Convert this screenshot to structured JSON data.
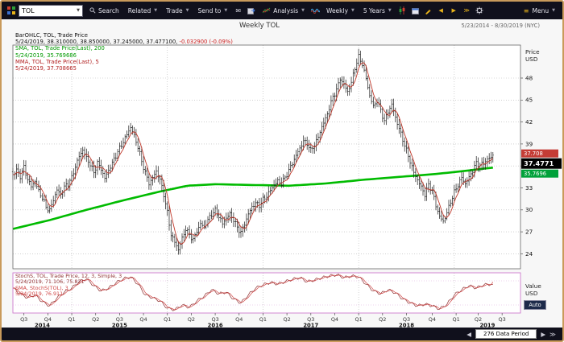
{
  "window": {
    "menu_label": "Menu"
  },
  "toolbar": {
    "ticker": "TOL",
    "search_label": "Search",
    "related_label": "Related",
    "trade_label": "Trade",
    "send_to_label": "Send to",
    "analysis_label": "Analysis",
    "interval_value": "Weekly",
    "range_value": "5 Years"
  },
  "header": {
    "title": "Weekly TOL",
    "date_range": "5/23/2014 - 8/30/2019 (NYC)"
  },
  "legend": {
    "line1": "BarOHLC, TOL, Trade Price",
    "line2_main": "5/24/2019, 38.310000, 38.850000, 37.245000, 37.477100,",
    "line2_change": "-0.032900 (-0.09%)",
    "line3": "SMA, TOL, Trade Price(Last),  200",
    "line4": "5/24/2019, 35.769686",
    "line5": "MMA, TOL, Trade Price(Last),  5",
    "line6": "5/24/2019, 37.708665"
  },
  "stoch_legend": {
    "line1": "StochS, TOL, Trade Price, 12, 3, Simple, 3",
    "line2": "5/24/2019, 71.106, 75.821",
    "line3": "SMA, StochS(TOL), 3",
    "line4": "5/24/2019, 76.911"
  },
  "price_axis": {
    "title_line1": "Price",
    "title_line2": "USD",
    "labels": [
      {
        "value": "37.708",
        "bg": "#c43c35"
      },
      {
        "value": "37.4771",
        "bg": "#000000"
      },
      {
        "value": "35.7696",
        "bg": "#00a13a"
      }
    ]
  },
  "stoch_axis": {
    "title_line1": "Value",
    "title_line2": "USD",
    "auto_label": "Auto"
  },
  "footer": {
    "data_period_label": "276 Data Period"
  },
  "colors": {
    "sma_green": "#00bb00",
    "mma_red": "#c0392b",
    "bar": "#1c1c1c",
    "change_red": "#cc2222",
    "stoch_main": "#8e3030",
    "stoch_sma": "#cf4444",
    "panel_magenta": "#cc7acc",
    "window_border": "#c99a5b"
  },
  "chart_data": {
    "type": "ohlc",
    "title": "Weekly TOL",
    "symbol": "TOL",
    "interval": "weekly",
    "x_weeks_total": 276,
    "bars_drawn": 262,
    "y_axis": {
      "label": "Price USD",
      "ticks": [
        48,
        45,
        42,
        39,
        36,
        33,
        30,
        27,
        24
      ],
      "range": [
        22.0,
        52.5
      ]
    },
    "last_bar": {
      "date": "5/24/2019",
      "open": 38.31,
      "high": 38.85,
      "low": 37.245,
      "close": 37.4771,
      "change": -0.0329,
      "change_pct_label": "-0.09%"
    },
    "series": [
      {
        "name": "TOL weekly close (anchors [week,price])",
        "type": "ohlc",
        "color": "#1c1c1c",
        "points": [
          [
            0,
            34.8
          ],
          [
            2,
            35.4
          ],
          [
            4,
            34.6
          ],
          [
            6,
            35.8
          ],
          [
            8,
            34.2
          ],
          [
            10,
            33.2
          ],
          [
            12,
            33.9
          ],
          [
            14,
            32.6
          ],
          [
            16,
            31.6
          ],
          [
            18,
            30.4
          ],
          [
            20,
            29.9
          ],
          [
            22,
            31.4
          ],
          [
            24,
            32.7
          ],
          [
            26,
            32.1
          ],
          [
            28,
            33.1
          ],
          [
            30,
            33.6
          ],
          [
            32,
            34.4
          ],
          [
            34,
            35.9
          ],
          [
            36,
            37.3
          ],
          [
            38,
            38.2
          ],
          [
            40,
            37.1
          ],
          [
            42,
            36.2
          ],
          [
            44,
            35.1
          ],
          [
            46,
            36.4
          ],
          [
            48,
            35.6
          ],
          [
            50,
            34.3
          ],
          [
            52,
            35.4
          ],
          [
            54,
            36.4
          ],
          [
            56,
            37.4
          ],
          [
            58,
            38.4
          ],
          [
            60,
            39.3
          ],
          [
            62,
            40.3
          ],
          [
            64,
            41.3
          ],
          [
            66,
            40.1
          ],
          [
            68,
            38.6
          ],
          [
            70,
            36.6
          ],
          [
            72,
            35.1
          ],
          [
            74,
            33.6
          ],
          [
            76,
            34.4
          ],
          [
            78,
            35.3
          ],
          [
            80,
            34.1
          ],
          [
            82,
            32.1
          ],
          [
            84,
            29.6
          ],
          [
            86,
            26.6
          ],
          [
            88,
            25.6
          ],
          [
            90,
            24.6
          ],
          [
            92,
            26.1
          ],
          [
            94,
            27.4
          ],
          [
            96,
            26.6
          ],
          [
            98,
            25.9
          ],
          [
            100,
            27.1
          ],
          [
            102,
            28.1
          ],
          [
            104,
            27.6
          ],
          [
            106,
            28.6
          ],
          [
            108,
            29.4
          ],
          [
            110,
            29.9
          ],
          [
            112,
            29.1
          ],
          [
            114,
            28.1
          ],
          [
            116,
            28.9
          ],
          [
            118,
            29.4
          ],
          [
            120,
            28.6
          ],
          [
            122,
            27.6
          ],
          [
            124,
            26.9
          ],
          [
            126,
            28.1
          ],
          [
            128,
            29.4
          ],
          [
            130,
            30.4
          ],
          [
            132,
            30.9
          ],
          [
            134,
            30.6
          ],
          [
            136,
            31.4
          ],
          [
            138,
            31.9
          ],
          [
            140,
            32.7
          ],
          [
            142,
            33.4
          ],
          [
            144,
            33.9
          ],
          [
            146,
            33.6
          ],
          [
            148,
            34.4
          ],
          [
            150,
            35.4
          ],
          [
            152,
            36.4
          ],
          [
            154,
            37.4
          ],
          [
            156,
            38.4
          ],
          [
            158,
            39.4
          ],
          [
            160,
            39.1
          ],
          [
            162,
            38.1
          ],
          [
            164,
            38.9
          ],
          [
            166,
            39.9
          ],
          [
            168,
            41.4
          ],
          [
            170,
            42.4
          ],
          [
            172,
            43.9
          ],
          [
            174,
            45.4
          ],
          [
            176,
            46.4
          ],
          [
            178,
            47.9
          ],
          [
            180,
            47.1
          ],
          [
            182,
            46.1
          ],
          [
            184,
            47.4
          ],
          [
            186,
            49.4
          ],
          [
            188,
            50.9
          ],
          [
            190,
            49.9
          ],
          [
            192,
            47.9
          ],
          [
            194,
            45.6
          ],
          [
            196,
            44.1
          ],
          [
            198,
            44.9
          ],
          [
            200,
            43.6
          ],
          [
            202,
            42.1
          ],
          [
            204,
            43.4
          ],
          [
            206,
            44.4
          ],
          [
            208,
            42.6
          ],
          [
            210,
            41.1
          ],
          [
            212,
            39.6
          ],
          [
            214,
            38.1
          ],
          [
            216,
            36.6
          ],
          [
            218,
            35.1
          ],
          [
            220,
            34.1
          ],
          [
            222,
            33.1
          ],
          [
            224,
            32.1
          ],
          [
            226,
            33.4
          ],
          [
            228,
            32.6
          ],
          [
            230,
            30.6
          ],
          [
            232,
            29.1
          ],
          [
            234,
            28.4
          ],
          [
            236,
            29.6
          ],
          [
            238,
            31.1
          ],
          [
            240,
            32.4
          ],
          [
            242,
            33.4
          ],
          [
            244,
            34.4
          ],
          [
            246,
            33.6
          ],
          [
            248,
            34.4
          ],
          [
            250,
            35.4
          ],
          [
            252,
            36.4
          ],
          [
            254,
            36.1
          ],
          [
            256,
            36.4
          ],
          [
            258,
            36.9
          ],
          [
            260,
            37.2
          ],
          [
            261,
            37.48
          ]
        ]
      },
      {
        "name": "SMA 200-week",
        "type": "line",
        "color": "#00bb00",
        "last_value": 35.769686,
        "points": [
          [
            0,
            27.4
          ],
          [
            20,
            28.6
          ],
          [
            40,
            30.0
          ],
          [
            60,
            31.3
          ],
          [
            80,
            32.5
          ],
          [
            95,
            33.3
          ],
          [
            110,
            33.5
          ],
          [
            130,
            33.4
          ],
          [
            150,
            33.3
          ],
          [
            170,
            33.6
          ],
          [
            190,
            34.1
          ],
          [
            210,
            34.5
          ],
          [
            230,
            34.9
          ],
          [
            245,
            35.3
          ],
          [
            261,
            35.77
          ]
        ]
      },
      {
        "name": "MMA 5-week",
        "type": "line_derived",
        "color": "#c0392b",
        "last_value": 37.708665,
        "derived_from": "5-week average of close"
      }
    ],
    "sub_chart": {
      "type": "line",
      "name": "StochS (12,3,Simple,3) with SMA 3",
      "y_range": [
        0,
        100
      ],
      "last_values": {
        "stoch": 71.106,
        "stoch_prev": 75.821,
        "sma": 76.911
      },
      "points": [
        [
          0,
          62
        ],
        [
          4,
          48
        ],
        [
          8,
          38
        ],
        [
          12,
          45
        ],
        [
          16,
          28
        ],
        [
          20,
          18
        ],
        [
          24,
          38
        ],
        [
          28,
          52
        ],
        [
          32,
          62
        ],
        [
          36,
          78
        ],
        [
          40,
          85
        ],
        [
          44,
          68
        ],
        [
          48,
          55
        ],
        [
          52,
          62
        ],
        [
          56,
          75
        ],
        [
          60,
          85
        ],
        [
          64,
          90
        ],
        [
          68,
          72
        ],
        [
          72,
          45
        ],
        [
          76,
          38
        ],
        [
          80,
          30
        ],
        [
          84,
          12
        ],
        [
          88,
          8
        ],
        [
          92,
          20
        ],
        [
          96,
          14
        ],
        [
          100,
          30
        ],
        [
          104,
          42
        ],
        [
          108,
          58
        ],
        [
          112,
          48
        ],
        [
          116,
          52
        ],
        [
          120,
          35
        ],
        [
          124,
          25
        ],
        [
          128,
          45
        ],
        [
          132,
          62
        ],
        [
          136,
          70
        ],
        [
          140,
          76
        ],
        [
          144,
          72
        ],
        [
          148,
          78
        ],
        [
          152,
          84
        ],
        [
          156,
          88
        ],
        [
          160,
          78
        ],
        [
          164,
          82
        ],
        [
          168,
          88
        ],
        [
          172,
          92
        ],
        [
          176,
          95
        ],
        [
          180,
          88
        ],
        [
          184,
          92
        ],
        [
          188,
          90
        ],
        [
          192,
          72
        ],
        [
          196,
          55
        ],
        [
          200,
          48
        ],
        [
          204,
          58
        ],
        [
          208,
          50
        ],
        [
          212,
          35
        ],
        [
          216,
          25
        ],
        [
          220,
          18
        ],
        [
          224,
          22
        ],
        [
          228,
          18
        ],
        [
          232,
          10
        ],
        [
          236,
          22
        ],
        [
          240,
          45
        ],
        [
          244,
          58
        ],
        [
          248,
          68
        ],
        [
          252,
          62
        ],
        [
          256,
          70
        ],
        [
          260,
          72
        ],
        [
          261,
          71.1
        ]
      ]
    },
    "x_axis": {
      "quarter_ticks": [
        {
          "label": "Q3",
          "week": 6
        },
        {
          "label": "Q4",
          "week": 19
        },
        {
          "label": "Q1",
          "week": 32
        },
        {
          "label": "Q2",
          "week": 45
        },
        {
          "label": "Q3",
          "week": 58
        },
        {
          "label": "Q4",
          "week": 71
        },
        {
          "label": "Q1",
          "week": 84
        },
        {
          "label": "Q2",
          "week": 97
        },
        {
          "label": "Q3",
          "week": 110
        },
        {
          "label": "Q4",
          "week": 123
        },
        {
          "label": "Q1",
          "week": 136
        },
        {
          "label": "Q2",
          "week": 149
        },
        {
          "label": "Q3",
          "week": 162
        },
        {
          "label": "Q4",
          "week": 175
        },
        {
          "label": "Q1",
          "week": 188
        },
        {
          "label": "Q2",
          "week": 201
        },
        {
          "label": "Q3",
          "week": 214
        },
        {
          "label": "Q4",
          "week": 228
        },
        {
          "label": "Q1",
          "week": 241
        },
        {
          "label": "Q2",
          "week": 253
        },
        {
          "label": "Q3",
          "week": 266
        }
      ],
      "year_labels": [
        {
          "label": "2014",
          "week": 16
        },
        {
          "label": "2015",
          "week": 58
        },
        {
          "label": "2016",
          "week": 110
        },
        {
          "label": "2017",
          "week": 162
        },
        {
          "label": "2018",
          "week": 214
        },
        {
          "label": "2019",
          "week": 258
        }
      ],
      "year_boundary_weeks": [
        32,
        84,
        136,
        188,
        240
      ]
    }
  }
}
